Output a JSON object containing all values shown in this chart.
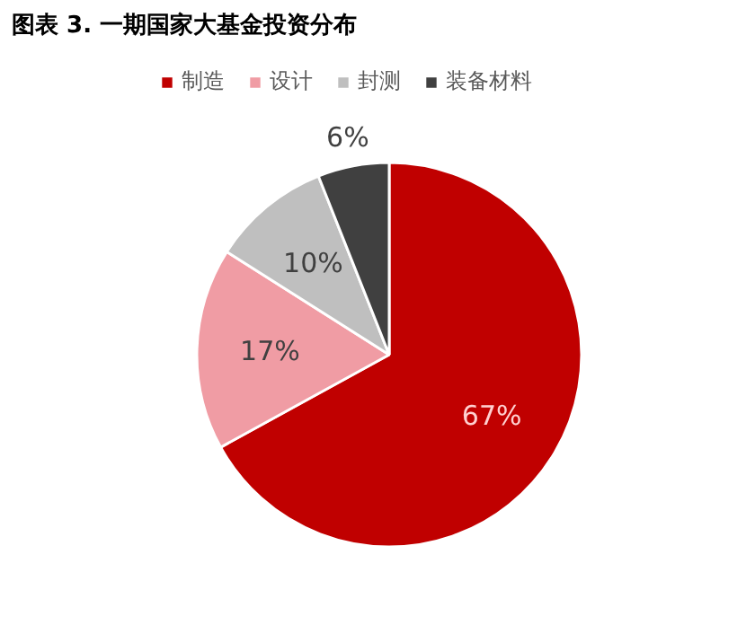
{
  "chart_data": {
    "type": "pie",
    "title": "图表 3. 一期国家大基金投资分布",
    "categories": [
      "制造",
      "设计",
      "封测",
      "装备材料"
    ],
    "values": [
      67,
      17,
      10,
      6
    ],
    "colors": [
      "#c00000",
      "#f09ca4",
      "#bfbfbf",
      "#404040"
    ],
    "value_labels": [
      "67%",
      "17%",
      "10%",
      "6%"
    ],
    "legend": "top"
  }
}
